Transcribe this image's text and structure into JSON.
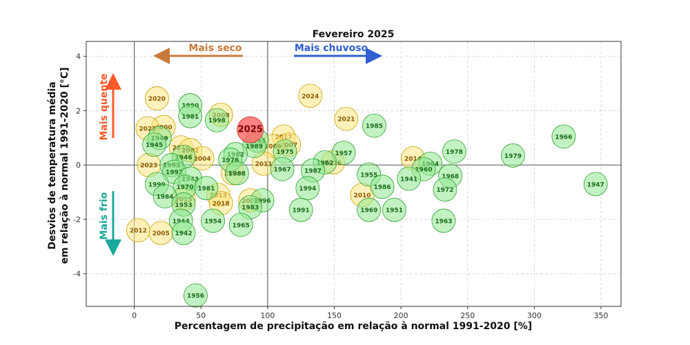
{
  "chart_data": {
    "type": "scatter",
    "title": "Fevereiro 2025",
    "xlabel": "Percentagem de precipitação em relação à normal 1991-2020 [%]",
    "ylabel_lines": [
      "Desvios de temperatura média",
      "em relação à normal 1991-2020 [°C]"
    ],
    "xlim": [
      -36,
      365
    ],
    "ylim": [
      -5.2,
      4.55
    ],
    "xticks": [
      0,
      50,
      100,
      150,
      200,
      250,
      300,
      350
    ],
    "yticks": [
      -4,
      -2,
      0,
      2,
      4
    ],
    "grid": true,
    "reference_lines": {
      "x": 0,
      "y": 0,
      "x2": 100
    },
    "colors": {
      "highlight": "#ff6b6b",
      "recent": "#ffe680",
      "older": "#90e890",
      "highlight_edge": "#c0392b",
      "recent_edge": "#c8a000",
      "older_edge": "#2e9e2e",
      "recent_text": "#8b5a00",
      "older_text": "#1a6b1a",
      "highlight_text": "#7a0000"
    },
    "annotations": {
      "dry": {
        "text": "Mais seco",
        "color": "#c87a3a"
      },
      "wet": {
        "text": "Mais chuvoso",
        "color": "#2f5fd0"
      },
      "hot": {
        "text": "Mais quente",
        "color": "#ff5a2a"
      },
      "cold": {
        "text": "Mais frio",
        "color": "#1aa89a"
      }
    },
    "points": [
      {
        "label": "2025",
        "x": 87,
        "y": 1.3,
        "group": "highlight"
      },
      {
        "label": "2020",
        "x": 17,
        "y": 2.45,
        "group": "recent"
      },
      {
        "label": "2024",
        "x": 132,
        "y": 2.55,
        "group": "recent"
      },
      {
        "label": "2021",
        "x": 159,
        "y": 1.7,
        "group": "recent"
      },
      {
        "label": "2008",
        "x": 65,
        "y": 1.85,
        "group": "recent"
      },
      {
        "label": "2000",
        "x": 22,
        "y": 1.4,
        "group": "recent"
      },
      {
        "label": "2022",
        "x": 10,
        "y": 1.35,
        "group": "recent"
      },
      {
        "label": "2017",
        "x": 112,
        "y": 1.05,
        "group": "recent"
      },
      {
        "label": "2007",
        "x": 116,
        "y": 0.75,
        "group": "recent"
      },
      {
        "label": "2006",
        "x": 104,
        "y": 0.7,
        "group": "recent"
      },
      {
        "label": "2019",
        "x": 35,
        "y": 0.65,
        "group": "recent"
      },
      {
        "label": "2002",
        "x": 42,
        "y": 0.55,
        "group": "recent"
      },
      {
        "label": "2004",
        "x": 51,
        "y": 0.25,
        "group": "recent"
      },
      {
        "label": "2014",
        "x": 209,
        "y": 0.25,
        "group": "recent"
      },
      {
        "label": "2016",
        "x": 149,
        "y": 0.1,
        "group": "recent"
      },
      {
        "label": "2011",
        "x": 97,
        "y": 0.05,
        "group": "recent"
      },
      {
        "label": "2023",
        "x": 11,
        "y": 0.0,
        "group": "recent"
      },
      {
        "label": "2009",
        "x": 74,
        "y": -0.3,
        "group": "recent"
      },
      {
        "label": "2010",
        "x": 171,
        "y": -1.1,
        "group": "recent"
      },
      {
        "label": "2013",
        "x": 63,
        "y": -1.1,
        "group": "recent"
      },
      {
        "label": "2018",
        "x": 65,
        "y": -1.4,
        "group": "recent"
      },
      {
        "label": "2015",
        "x": 37,
        "y": -1.25,
        "group": "recent"
      },
      {
        "label": "2003",
        "x": 87,
        "y": -1.3,
        "group": "recent"
      },
      {
        "label": "2012",
        "x": 3,
        "y": -2.4,
        "group": "recent"
      },
      {
        "label": "2005",
        "x": 20,
        "y": -2.5,
        "group": "recent"
      },
      {
        "label": "1990",
        "x": 42,
        "y": 2.2,
        "group": "older"
      },
      {
        "label": "1981",
        "x": 42,
        "y": 1.8,
        "group": "older"
      },
      {
        "label": "1998",
        "x": 62,
        "y": 1.65,
        "group": "older"
      },
      {
        "label": "1985",
        "x": 180,
        "y": 1.45,
        "group": "older"
      },
      {
        "label": "1966",
        "x": 322,
        "y": 1.05,
        "group": "older"
      },
      {
        "label": "1949",
        "x": 19,
        "y": 1.0,
        "group": "older"
      },
      {
        "label": "1995",
        "x": 92,
        "y": 0.9,
        "group": "older"
      },
      {
        "label": "1945",
        "x": 15,
        "y": 0.75,
        "group": "older"
      },
      {
        "label": "1989",
        "x": 90,
        "y": 0.7,
        "group": "older"
      },
      {
        "label": "1975",
        "x": 113,
        "y": 0.5,
        "group": "older"
      },
      {
        "label": "1978",
        "x": 240,
        "y": 0.5,
        "group": "older"
      },
      {
        "label": "1957",
        "x": 157,
        "y": 0.45,
        "group": "older"
      },
      {
        "label": "1982",
        "x": 76,
        "y": 0.4,
        "group": "older"
      },
      {
        "label": "1979",
        "x": 284,
        "y": 0.35,
        "group": "older"
      },
      {
        "label": "1946",
        "x": 37,
        "y": 0.3,
        "group": "older"
      },
      {
        "label": "1976",
        "x": 72,
        "y": 0.2,
        "group": "older"
      },
      {
        "label": "1962",
        "x": 143,
        "y": 0.1,
        "group": "older"
      },
      {
        "label": "1964",
        "x": 222,
        "y": 0.05,
        "group": "older"
      },
      {
        "label": "1993",
        "x": 28,
        "y": 0.0,
        "group": "older"
      },
      {
        "label": "1960",
        "x": 217,
        "y": -0.15,
        "group": "older"
      },
      {
        "label": "1992",
        "x": 30,
        "y": -0.25,
        "group": "older"
      },
      {
        "label": "1967",
        "x": 111,
        "y": -0.15,
        "group": "older"
      },
      {
        "label": "1987",
        "x": 134,
        "y": -0.2,
        "group": "older"
      },
      {
        "label": "1988",
        "x": 77,
        "y": -0.3,
        "group": "older"
      },
      {
        "label": "1955",
        "x": 176,
        "y": -0.35,
        "group": "older"
      },
      {
        "label": "1968",
        "x": 237,
        "y": -0.4,
        "group": "older"
      },
      {
        "label": "1941",
        "x": 206,
        "y": -0.5,
        "group": "older"
      },
      {
        "label": "1947",
        "x": 346,
        "y": -0.7,
        "group": "older"
      },
      {
        "label": "1999",
        "x": 17,
        "y": -0.7,
        "group": "older"
      },
      {
        "label": "1943",
        "x": 42,
        "y": -0.5,
        "group": "older"
      },
      {
        "label": "1970",
        "x": 38,
        "y": -0.8,
        "group": "older"
      },
      {
        "label": "1981",
        "x": 54,
        "y": -0.85,
        "group": "older"
      },
      {
        "label": "1986",
        "x": 186,
        "y": -0.8,
        "group": "older"
      },
      {
        "label": "1994",
        "x": 130,
        "y": -0.85,
        "group": "older"
      },
      {
        "label": "1972",
        "x": 233,
        "y": -0.9,
        "group": "older"
      },
      {
        "label": "1984",
        "x": 23,
        "y": -1.15,
        "group": "older"
      },
      {
        "label": "1996",
        "x": 96,
        "y": -1.3,
        "group": "older"
      },
      {
        "label": "1983",
        "x": 87,
        "y": -1.55,
        "group": "older"
      },
      {
        "label": "1953",
        "x": 37,
        "y": -1.45,
        "group": "older"
      },
      {
        "label": "1991",
        "x": 125,
        "y": -1.65,
        "group": "older"
      },
      {
        "label": "1969",
        "x": 176,
        "y": -1.65,
        "group": "older"
      },
      {
        "label": "1951",
        "x": 195,
        "y": -1.65,
        "group": "older"
      },
      {
        "label": "1954",
        "x": 59,
        "y": -2.05,
        "group": "older"
      },
      {
        "label": "1944",
        "x": 35,
        "y": -2.05,
        "group": "older"
      },
      {
        "label": "1963",
        "x": 232,
        "y": -2.05,
        "group": "older"
      },
      {
        "label": "1965",
        "x": 80,
        "y": -2.2,
        "group": "older"
      },
      {
        "label": "1942",
        "x": 37,
        "y": -2.5,
        "group": "older"
      },
      {
        "label": "1956",
        "x": 46,
        "y": -4.8,
        "group": "older"
      }
    ]
  }
}
